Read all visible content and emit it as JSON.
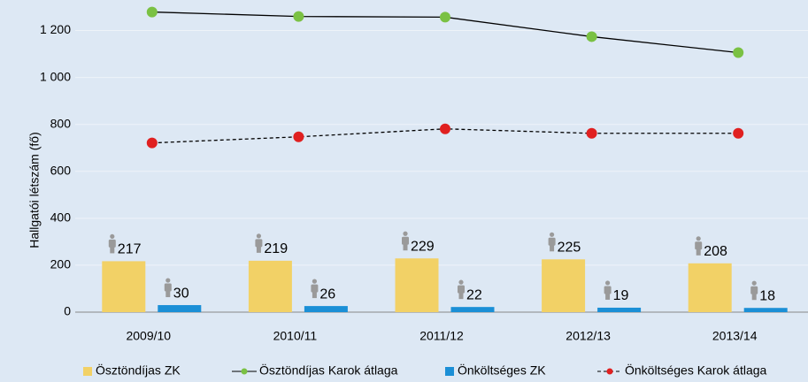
{
  "chart_data": {
    "type": "bar_line",
    "y_axis_label": "Hallgatói létszám (fő)",
    "categories": [
      "2009/10",
      "2010/11",
      "2011/12",
      "2012/13",
      "2013/14"
    ],
    "series": [
      {
        "name": "Ösztöndíjas ZK",
        "kind": "bar",
        "color": "#f2d166",
        "values": [
          217,
          219,
          229,
          225,
          208
        ]
      },
      {
        "name": "Ösztöndíjas Karok átlaga",
        "kind": "line",
        "color": "#7ac143",
        "line_color": "#000000",
        "dashed": false,
        "values": [
          1279,
          1260,
          1257,
          1174,
          1106
        ]
      },
      {
        "name": "Önköltséges ZK",
        "kind": "bar",
        "color": "#1b8fd6",
        "values": [
          30,
          26,
          22,
          19,
          18
        ]
      },
      {
        "name": "Önköltséges Karok átlaga",
        "kind": "line",
        "color": "#e02020",
        "line_color": "#000000",
        "dashed": true,
        "values": [
          721,
          747,
          781,
          762,
          762
        ]
      }
    ],
    "ylim": [
      0,
      1300
    ],
    "yticks": [
      0,
      200,
      400,
      600,
      800,
      {
        "value": 1000,
        "label": "1 000"
      },
      {
        "value": 1200,
        "label": "1 200"
      }
    ],
    "grid": true,
    "legend": "bottom"
  }
}
